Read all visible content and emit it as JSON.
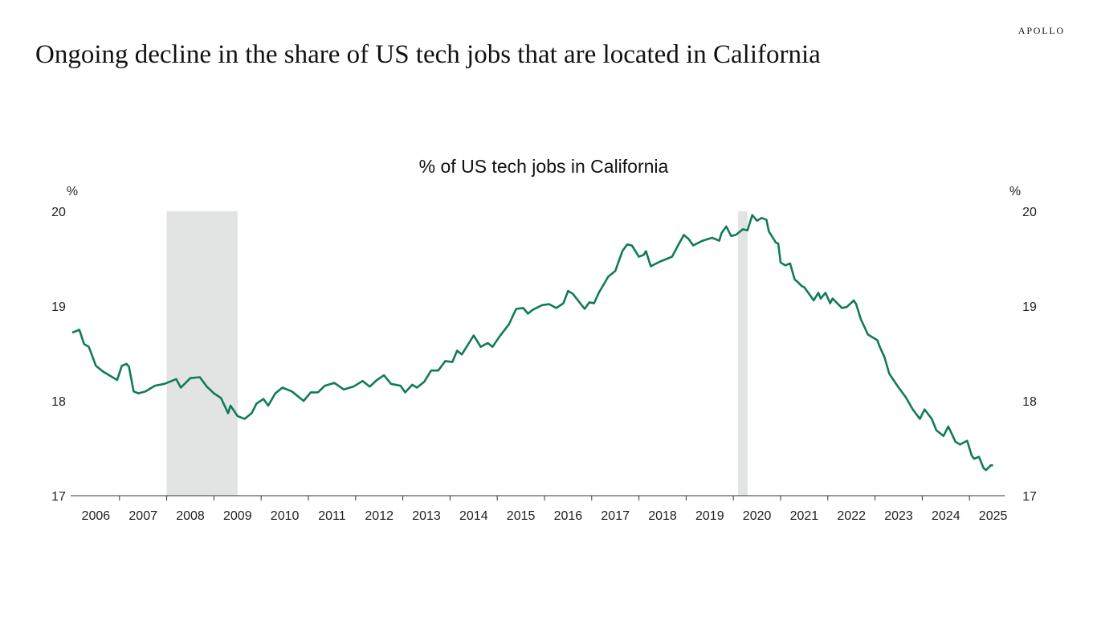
{
  "logo": "APOLLO",
  "title": "Ongoing decline in the share of US tech jobs that are located in California",
  "chart_data": {
    "type": "line",
    "title": "% of US tech jobs in California",
    "ylabel_left": "%",
    "ylabel_right": "%",
    "ylim": [
      17,
      20
    ],
    "yticks": [
      17,
      18,
      19,
      20
    ],
    "xlim": [
      2006.0,
      2025.75
    ],
    "xtick_labels": [
      "2006",
      "2007",
      "2008",
      "2009",
      "2010",
      "2011",
      "2012",
      "2013",
      "2014",
      "2015",
      "2016",
      "2017",
      "2018",
      "2019",
      "2020",
      "2021",
      "2022",
      "2023",
      "2024",
      "2025"
    ],
    "grid": false,
    "line_color": "#117a5c",
    "shade_color": "#e2e3e3",
    "recession_shading": [
      [
        2008.0,
        2009.5
      ],
      [
        2020.1,
        2020.3
      ]
    ],
    "series": [
      {
        "x": [
          2006.0,
          2006.15,
          2006.25,
          2006.35,
          2006.5,
          2006.65,
          2006.85,
          2006.95,
          2007.05,
          2007.15,
          2007.2,
          2007.3,
          2007.4,
          2007.55,
          2007.75,
          2007.95,
          2008.2,
          2008.3,
          2008.5,
          2008.7,
          2008.85,
          2009.0,
          2009.15,
          2009.3,
          2009.35,
          2009.5,
          2009.65,
          2009.8,
          2009.9,
          2010.05,
          2010.15,
          2010.3,
          2010.45,
          2010.65,
          2010.9,
          2011.05,
          2011.2,
          2011.35,
          2011.55,
          2011.75,
          2011.95,
          2012.15,
          2012.3,
          2012.45,
          2012.6,
          2012.75,
          2012.95,
          2013.05,
          2013.2,
          2013.3,
          2013.45,
          2013.6,
          2013.75,
          2013.9,
          2014.05,
          2014.15,
          2014.25,
          2014.4,
          2014.5,
          2014.65,
          2014.8,
          2014.9,
          2015.05,
          2015.25,
          2015.4,
          2015.55,
          2015.65,
          2015.75,
          2015.95,
          2016.1,
          2016.25,
          2016.4,
          2016.5,
          2016.6,
          2016.85,
          2016.95,
          2017.05,
          2017.15,
          2017.35,
          2017.5,
          2017.65,
          2017.75,
          2017.85,
          2018.0,
          2018.1,
          2018.15,
          2018.25,
          2018.45,
          2018.6,
          2018.7,
          2018.85,
          2018.95,
          2019.05,
          2019.15,
          2019.35,
          2019.55,
          2019.7,
          2019.75,
          2019.85,
          2019.95,
          2020.05,
          2020.2,
          2020.3,
          2020.4,
          2020.5,
          2020.6,
          2020.7,
          2020.75,
          2020.9,
          2020.95,
          2021.0,
          2021.1,
          2021.2,
          2021.3,
          2021.35,
          2021.45,
          2021.5,
          2021.7,
          2021.8,
          2021.85,
          2021.95,
          2022.05,
          2022.1,
          2022.3,
          2022.4,
          2022.55,
          2022.6,
          2022.7,
          2022.85,
          2023.05,
          2023.1,
          2023.2,
          2023.3,
          2023.35,
          2023.5,
          2023.65,
          2023.8,
          2023.95,
          2024.05,
          2024.2,
          2024.3,
          2024.45,
          2024.55,
          2024.6,
          2024.7,
          2024.8,
          2024.95,
          2025.05,
          2025.1,
          2025.2,
          2025.3,
          2025.35,
          2025.45,
          2025.5
        ],
        "y": [
          18.72,
          18.75,
          18.6,
          18.57,
          18.37,
          18.31,
          18.25,
          18.22,
          18.37,
          18.39,
          18.36,
          18.1,
          18.08,
          18.1,
          18.16,
          18.18,
          18.23,
          18.14,
          18.24,
          18.25,
          18.15,
          18.08,
          18.03,
          17.87,
          17.95,
          17.84,
          17.81,
          17.87,
          17.97,
          18.02,
          17.95,
          18.08,
          18.14,
          18.1,
          18.0,
          18.09,
          18.09,
          18.16,
          18.19,
          18.12,
          18.15,
          18.21,
          18.15,
          18.22,
          18.27,
          18.18,
          18.16,
          18.09,
          18.17,
          18.14,
          18.2,
          18.32,
          18.32,
          18.42,
          18.41,
          18.53,
          18.49,
          18.61,
          18.69,
          18.57,
          18.61,
          18.57,
          18.68,
          18.81,
          18.97,
          18.98,
          18.92,
          18.96,
          19.01,
          19.02,
          18.98,
          19.03,
          19.16,
          19.13,
          18.97,
          19.04,
          19.03,
          19.14,
          19.31,
          19.37,
          19.58,
          19.65,
          19.64,
          19.52,
          19.54,
          19.58,
          19.42,
          19.47,
          19.5,
          19.52,
          19.66,
          19.75,
          19.71,
          19.64,
          19.69,
          19.72,
          19.69,
          19.77,
          19.84,
          19.74,
          19.75,
          19.81,
          19.8,
          19.96,
          19.9,
          19.93,
          19.91,
          19.79,
          19.67,
          19.66,
          19.46,
          19.43,
          19.45,
          19.28,
          19.26,
          19.21,
          19.2,
          19.06,
          19.14,
          19.08,
          19.14,
          19.03,
          19.08,
          18.98,
          18.99,
          19.06,
          19.02,
          18.86,
          18.7,
          18.64,
          18.57,
          18.46,
          18.29,
          18.25,
          18.14,
          18.04,
          17.91,
          17.81,
          17.91,
          17.81,
          17.69,
          17.63,
          17.73,
          17.68,
          17.57,
          17.54,
          17.58,
          17.42,
          17.39,
          17.41,
          17.29,
          17.27,
          17.32,
          17.32
        ]
      }
    ]
  }
}
